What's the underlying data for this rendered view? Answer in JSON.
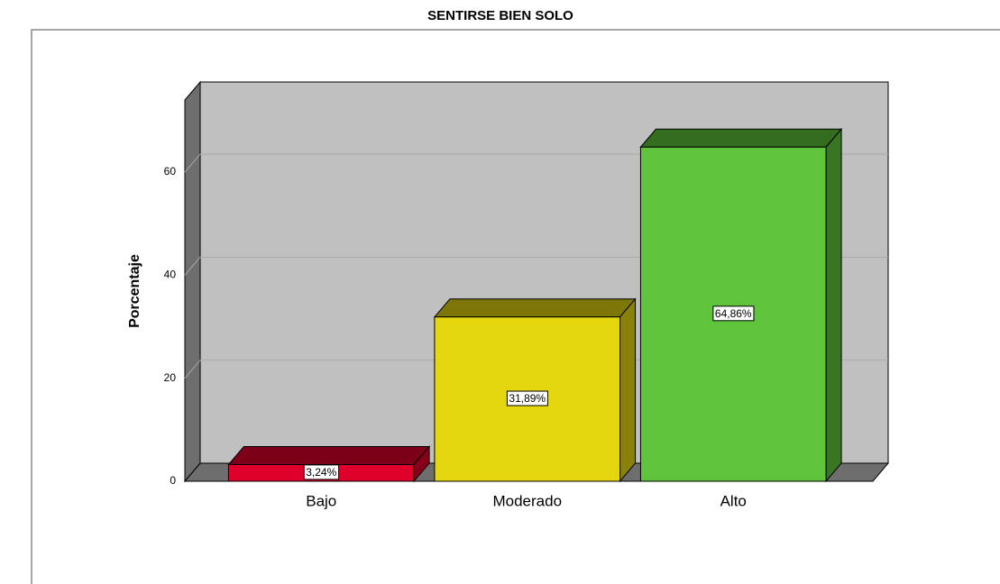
{
  "chart_data": {
    "type": "bar3d",
    "title": "SENTIRSE BIEN SOLO",
    "y_label": "Porcentaje",
    "categories": [
      "Bajo",
      "Moderado",
      "Alto"
    ],
    "values": [
      3.24,
      31.89,
      64.86
    ],
    "value_labels": [
      "3,24%",
      "31,89%",
      "64,86%"
    ],
    "colors": [
      "#e0002c",
      "#e4d70f",
      "#5fc43b"
    ],
    "ylim": [
      0,
      74
    ],
    "yticks": [
      0,
      20,
      40,
      60
    ],
    "grid": true
  }
}
